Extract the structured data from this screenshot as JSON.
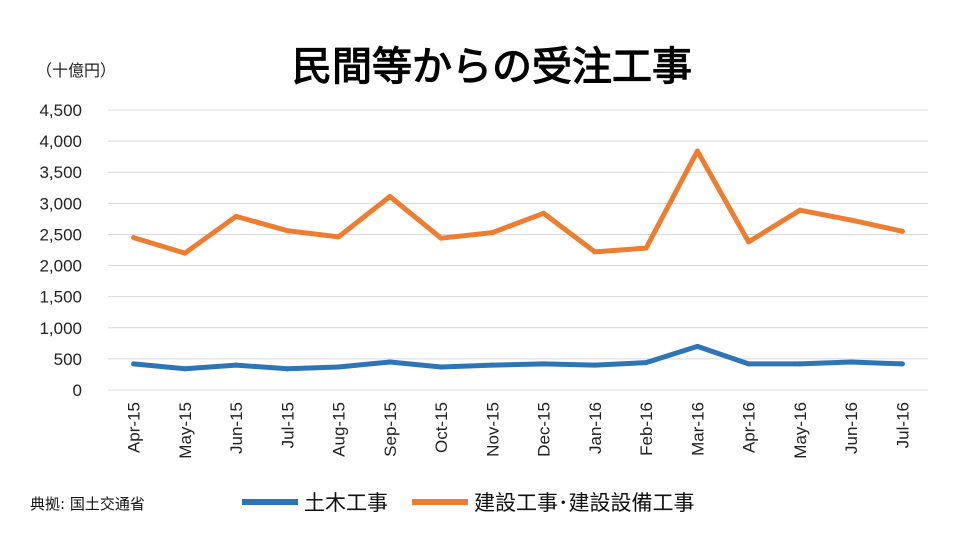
{
  "chart_data": {
    "type": "line",
    "title": "民間等からの受注工事",
    "unit_label": "（十億円）",
    "source": "典拠: 国土交通省",
    "ylim": [
      0,
      4500
    ],
    "yticks": [
      0,
      500,
      1000,
      1500,
      2000,
      2500,
      3000,
      3500,
      4000,
      4500
    ],
    "ytick_labels": [
      "0",
      "500",
      "1,000",
      "1,500",
      "2,000",
      "2,500",
      "3,000",
      "3,500",
      "4,000",
      "4,500"
    ],
    "grid": true,
    "legend_position": "bottom",
    "categories": [
      "Apr-15",
      "May-15",
      "Jun-15",
      "Jul-15",
      "Aug-15",
      "Sep-15",
      "Oct-15",
      "Nov-15",
      "Dec-15",
      "Jan-16",
      "Feb-16",
      "Mar-16",
      "Apr-16",
      "May-16",
      "Jun-16",
      "Jul-16"
    ],
    "series": [
      {
        "name": "土木工事",
        "color": "#2e75b6",
        "values": [
          420,
          340,
          400,
          340,
          370,
          450,
          370,
          400,
          420,
          400,
          440,
          700,
          420,
          420,
          450,
          420
        ]
      },
      {
        "name": "建設工事･建設設備工事",
        "color": "#ed7d31",
        "values": [
          2450,
          2200,
          2790,
          2560,
          2460,
          3110,
          2440,
          2530,
          2840,
          2220,
          2280,
          3840,
          2380,
          2890,
          2730,
          2550
        ]
      }
    ]
  }
}
